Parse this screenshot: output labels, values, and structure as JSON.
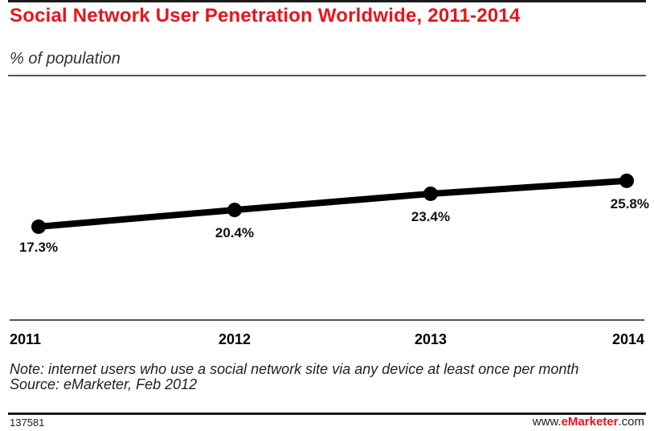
{
  "header": {
    "title": "Social Network User Penetration Worldwide, 2011-2014",
    "subtitle": "% of population"
  },
  "chart_data": {
    "type": "line",
    "title": "Social Network User Penetration Worldwide, 2011-2014",
    "ylabel": "% of population",
    "categories": [
      "2011",
      "2012",
      "2013",
      "2014"
    ],
    "series": [
      {
        "values": [
          17.3,
          20.4,
          23.4,
          25.8
        ]
      }
    ],
    "data_labels": [
      "17.3%",
      "20.4%",
      "23.4%",
      "25.8%"
    ],
    "ylim": [
      0,
      45
    ],
    "grid": false,
    "legend": "none",
    "line_color": "#000000"
  },
  "footer": {
    "note": "Note: internet users who use a social network site via any device at least once per month",
    "source": "Source: eMarketer, Feb 2012",
    "chart_id": "137581",
    "brand_prefix": "www.",
    "brand_name": "eMarketer",
    "brand_suffix": ".com"
  },
  "colors": {
    "title": "#e8141c",
    "brand": "#e8141c",
    "line": "#000000"
  }
}
